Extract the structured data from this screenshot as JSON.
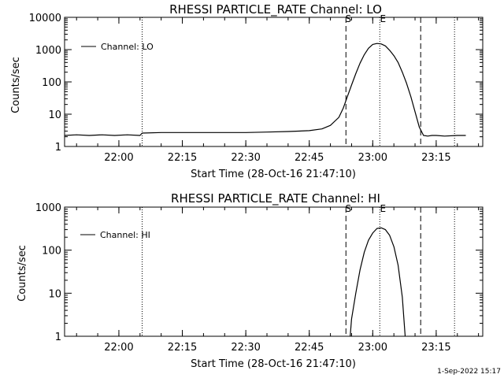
{
  "timestamp": "1-Sep-2022 15:17",
  "colors": {
    "background": "#ffffff",
    "foreground": "#000000"
  },
  "chart_data": [
    {
      "type": "line",
      "title": "RHESSI PARTICLE_RATE Channel: LO",
      "xlabel": "Start Time (28-Oct-16 21:47:10)",
      "ylabel": "Counts/sec",
      "yscale": "log",
      "xlim": [
        "21:47:10",
        "23:26:00"
      ],
      "ylim": [
        1,
        10000
      ],
      "xticks": [
        "22:00",
        "22:15",
        "22:30",
        "22:45",
        "23:00",
        "23:15"
      ],
      "yticks": [
        "1",
        "10",
        "100",
        "1000",
        "10000"
      ],
      "legend": {
        "position": "top-left",
        "entries": [
          "Channel: LO"
        ]
      },
      "series": [
        {
          "name": "Channel: LO",
          "x": [
            "21:47:10",
            "21:50",
            "21:53",
            "21:56",
            "21:59",
            "22:02",
            "22:05",
            "22:05:30",
            "22:10",
            "22:15",
            "22:20",
            "22:25",
            "22:30",
            "22:35",
            "22:40",
            "22:45",
            "22:48",
            "22:50",
            "22:52",
            "22:53",
            "22:54",
            "22:55",
            "22:56",
            "22:57",
            "22:58",
            "22:59",
            "23:00",
            "23:01",
            "23:02",
            "23:03",
            "23:04",
            "23:05",
            "23:06",
            "23:07",
            "23:08",
            "23:09",
            "23:10",
            "23:11",
            "23:12",
            "23:13",
            "23:14",
            "23:15",
            "23:17",
            "23:20",
            "23:22"
          ],
          "y": [
            2.2,
            2.3,
            2.2,
            2.3,
            2.2,
            2.3,
            2.2,
            2.6,
            2.7,
            2.7,
            2.7,
            2.7,
            2.7,
            2.8,
            2.9,
            3.1,
            3.5,
            4.5,
            8,
            15,
            35,
            80,
            180,
            380,
            700,
            1100,
            1450,
            1550,
            1500,
            1300,
            950,
            650,
            400,
            200,
            90,
            35,
            12,
            4,
            2.2,
            2.1,
            2.2,
            2.2,
            2.1,
            2.2,
            2.2
          ]
        }
      ],
      "markers": [
        {
          "label": "S",
          "x": "22:53:40",
          "style": "dashed"
        },
        {
          "label": "E",
          "x": "23:01:40",
          "style": "dotted"
        },
        {
          "label": "",
          "x": "23:11:20",
          "style": "dashed"
        },
        {
          "label": "",
          "x": "22:05:30",
          "style": "dotted"
        },
        {
          "label": "",
          "x": "23:19:20",
          "style": "dotted"
        }
      ]
    },
    {
      "type": "line",
      "title": "RHESSI PARTICLE_RATE Channel: HI",
      "xlabel": "Start Time (28-Oct-16 21:47:10)",
      "ylabel": "Counts/sec",
      "yscale": "log",
      "xlim": [
        "21:47:10",
        "23:26:00"
      ],
      "ylim": [
        1,
        1000
      ],
      "xticks": [
        "22:00",
        "22:15",
        "22:30",
        "22:45",
        "23:00",
        "23:15"
      ],
      "yticks": [
        "1",
        "10",
        "100",
        "1000"
      ],
      "legend": {
        "position": "top-left",
        "entries": [
          "Channel: HI"
        ]
      },
      "series": [
        {
          "name": "Channel: HI",
          "x": [
            "22:54:40",
            "22:55",
            "22:56",
            "22:57",
            "22:58",
            "22:59",
            "23:00",
            "23:01",
            "23:02",
            "23:03",
            "23:04",
            "23:05",
            "23:06",
            "23:07",
            "23:07:40"
          ],
          "y": [
            1,
            2.5,
            10,
            35,
            90,
            170,
            250,
            320,
            330,
            300,
            220,
            120,
            45,
            8,
            1
          ]
        }
      ],
      "markers": [
        {
          "label": "S",
          "x": "22:53:40",
          "style": "dashed"
        },
        {
          "label": "E",
          "x": "23:01:40",
          "style": "dotted"
        },
        {
          "label": "",
          "x": "23:11:20",
          "style": "dashed"
        },
        {
          "label": "",
          "x": "22:05:30",
          "style": "dotted"
        },
        {
          "label": "",
          "x": "23:19:20",
          "style": "dotted"
        }
      ]
    }
  ]
}
